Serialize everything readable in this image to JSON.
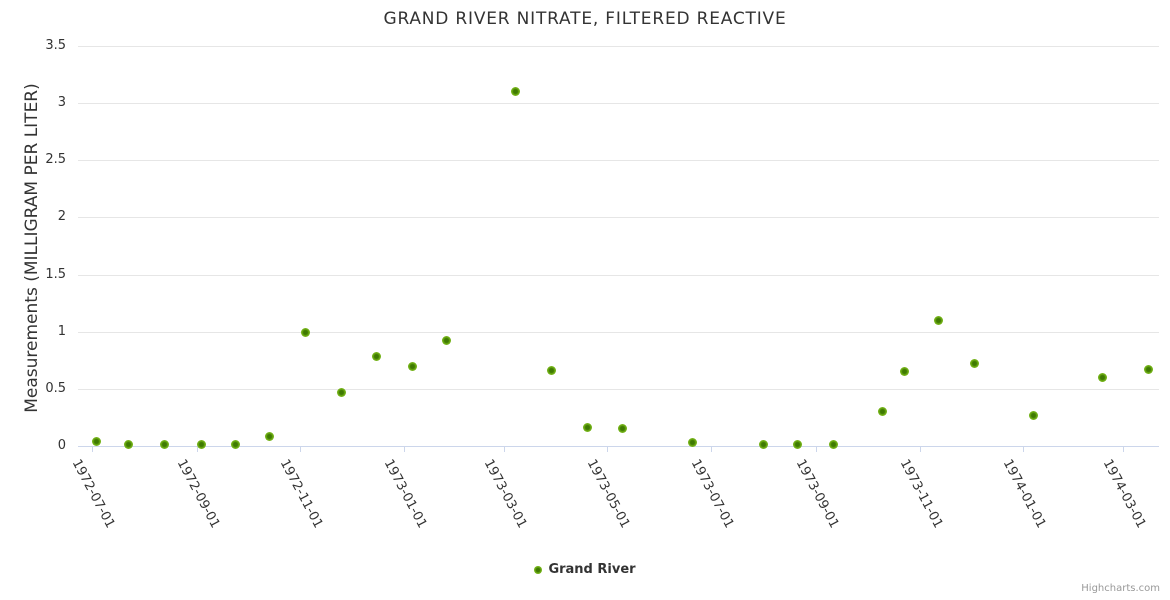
{
  "title": "GRAND RIVER NITRATE, FILTERED REACTIVE",
  "credits_label": "Highcharts.com",
  "legend": {
    "series_label": "Grand River"
  },
  "colors": {
    "point_outer": "#86c22d",
    "point_mid": "#6fae14",
    "point_core": "#3f7a02",
    "gridline": "#e6e6e6",
    "axis_line": "#ccd6eb",
    "text": "#333333",
    "credits_text": "#999999"
  },
  "chart_data": {
    "type": "scatter",
    "title": "GRAND RIVER NITRATE, FILTERED REACTIVE",
    "xlabel": "",
    "ylabel": "Measurements (MILLIGRAM PER LITER)",
    "ylim": [
      0,
      3.5
    ],
    "y_ticks": [
      0,
      0.5,
      1,
      1.5,
      2,
      2.5,
      3,
      3.5
    ],
    "x_ticks": [
      "1972-07-01",
      "1972-09-01",
      "1972-11-01",
      "1973-01-01",
      "1973-03-01",
      "1973-05-01",
      "1973-07-01",
      "1973-09-01",
      "1973-11-01",
      "1974-01-01",
      "1974-03-01"
    ],
    "x_range": [
      "1972-06-23",
      "1974-03-22"
    ],
    "grid": true,
    "legend_position": "bottom-center",
    "series": [
      {
        "name": "Grand River",
        "color": "#6fae14",
        "points": [
          {
            "x": "1972-07-04",
            "y": 0.04
          },
          {
            "x": "1972-07-23",
            "y": 0.01
          },
          {
            "x": "1972-08-13",
            "y": 0.01
          },
          {
            "x": "1972-09-04",
            "y": 0.01
          },
          {
            "x": "1972-09-24",
            "y": 0.01
          },
          {
            "x": "1972-10-14",
            "y": 0.08
          },
          {
            "x": "1972-11-04",
            "y": 0.99
          },
          {
            "x": "1972-11-25",
            "y": 0.47
          },
          {
            "x": "1972-12-16",
            "y": 0.78
          },
          {
            "x": "1973-01-06",
            "y": 0.7
          },
          {
            "x": "1973-01-26",
            "y": 0.92
          },
          {
            "x": "1973-03-08",
            "y": 3.1
          },
          {
            "x": "1973-03-29",
            "y": 0.66
          },
          {
            "x": "1973-04-19",
            "y": 0.16
          },
          {
            "x": "1973-05-10",
            "y": 0.15
          },
          {
            "x": "1973-06-20",
            "y": 0.03
          },
          {
            "x": "1973-08-01",
            "y": 0.01
          },
          {
            "x": "1973-08-21",
            "y": 0.01
          },
          {
            "x": "1973-09-11",
            "y": 0.01
          },
          {
            "x": "1973-10-10",
            "y": 0.3
          },
          {
            "x": "1973-10-23",
            "y": 0.65
          },
          {
            "x": "1973-11-12",
            "y": 1.1
          },
          {
            "x": "1973-12-03",
            "y": 0.72
          },
          {
            "x": "1974-01-07",
            "y": 0.27
          },
          {
            "x": "1974-02-17",
            "y": 0.6
          },
          {
            "x": "1974-03-16",
            "y": 0.67
          }
        ]
      }
    ]
  }
}
